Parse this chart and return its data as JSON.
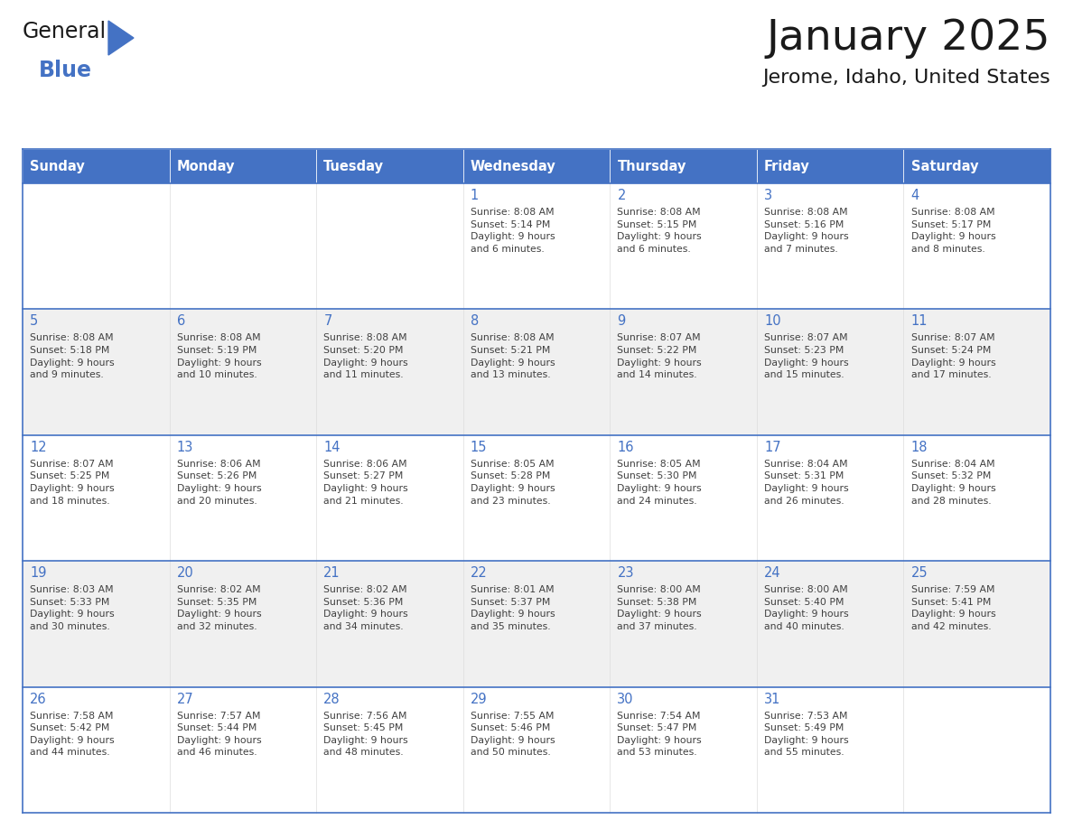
{
  "title": "January 2025",
  "subtitle": "Jerome, Idaho, United States",
  "header_bg_color": "#4472C4",
  "header_text_color": "#FFFFFF",
  "cell_bg_white": "#FFFFFF",
  "cell_bg_gray": "#F0F0F0",
  "border_color": "#4472C4",
  "row_separator_color": "#4472C4",
  "day_number_color": "#4472C4",
  "cell_text_color": "#404040",
  "title_color": "#1a1a1a",
  "subtitle_color": "#1a1a1a",
  "days_of_week": [
    "Sunday",
    "Monday",
    "Tuesday",
    "Wednesday",
    "Thursday",
    "Friday",
    "Saturday"
  ],
  "weeks": [
    [
      {
        "day": "",
        "info": ""
      },
      {
        "day": "",
        "info": ""
      },
      {
        "day": "",
        "info": ""
      },
      {
        "day": "1",
        "info": "Sunrise: 8:08 AM\nSunset: 5:14 PM\nDaylight: 9 hours\nand 6 minutes."
      },
      {
        "day": "2",
        "info": "Sunrise: 8:08 AM\nSunset: 5:15 PM\nDaylight: 9 hours\nand 6 minutes."
      },
      {
        "day": "3",
        "info": "Sunrise: 8:08 AM\nSunset: 5:16 PM\nDaylight: 9 hours\nand 7 minutes."
      },
      {
        "day": "4",
        "info": "Sunrise: 8:08 AM\nSunset: 5:17 PM\nDaylight: 9 hours\nand 8 minutes."
      }
    ],
    [
      {
        "day": "5",
        "info": "Sunrise: 8:08 AM\nSunset: 5:18 PM\nDaylight: 9 hours\nand 9 minutes."
      },
      {
        "day": "6",
        "info": "Sunrise: 8:08 AM\nSunset: 5:19 PM\nDaylight: 9 hours\nand 10 minutes."
      },
      {
        "day": "7",
        "info": "Sunrise: 8:08 AM\nSunset: 5:20 PM\nDaylight: 9 hours\nand 11 minutes."
      },
      {
        "day": "8",
        "info": "Sunrise: 8:08 AM\nSunset: 5:21 PM\nDaylight: 9 hours\nand 13 minutes."
      },
      {
        "day": "9",
        "info": "Sunrise: 8:07 AM\nSunset: 5:22 PM\nDaylight: 9 hours\nand 14 minutes."
      },
      {
        "day": "10",
        "info": "Sunrise: 8:07 AM\nSunset: 5:23 PM\nDaylight: 9 hours\nand 15 minutes."
      },
      {
        "day": "11",
        "info": "Sunrise: 8:07 AM\nSunset: 5:24 PM\nDaylight: 9 hours\nand 17 minutes."
      }
    ],
    [
      {
        "day": "12",
        "info": "Sunrise: 8:07 AM\nSunset: 5:25 PM\nDaylight: 9 hours\nand 18 minutes."
      },
      {
        "day": "13",
        "info": "Sunrise: 8:06 AM\nSunset: 5:26 PM\nDaylight: 9 hours\nand 20 minutes."
      },
      {
        "day": "14",
        "info": "Sunrise: 8:06 AM\nSunset: 5:27 PM\nDaylight: 9 hours\nand 21 minutes."
      },
      {
        "day": "15",
        "info": "Sunrise: 8:05 AM\nSunset: 5:28 PM\nDaylight: 9 hours\nand 23 minutes."
      },
      {
        "day": "16",
        "info": "Sunrise: 8:05 AM\nSunset: 5:30 PM\nDaylight: 9 hours\nand 24 minutes."
      },
      {
        "day": "17",
        "info": "Sunrise: 8:04 AM\nSunset: 5:31 PM\nDaylight: 9 hours\nand 26 minutes."
      },
      {
        "day": "18",
        "info": "Sunrise: 8:04 AM\nSunset: 5:32 PM\nDaylight: 9 hours\nand 28 minutes."
      }
    ],
    [
      {
        "day": "19",
        "info": "Sunrise: 8:03 AM\nSunset: 5:33 PM\nDaylight: 9 hours\nand 30 minutes."
      },
      {
        "day": "20",
        "info": "Sunrise: 8:02 AM\nSunset: 5:35 PM\nDaylight: 9 hours\nand 32 minutes."
      },
      {
        "day": "21",
        "info": "Sunrise: 8:02 AM\nSunset: 5:36 PM\nDaylight: 9 hours\nand 34 minutes."
      },
      {
        "day": "22",
        "info": "Sunrise: 8:01 AM\nSunset: 5:37 PM\nDaylight: 9 hours\nand 35 minutes."
      },
      {
        "day": "23",
        "info": "Sunrise: 8:00 AM\nSunset: 5:38 PM\nDaylight: 9 hours\nand 37 minutes."
      },
      {
        "day": "24",
        "info": "Sunrise: 8:00 AM\nSunset: 5:40 PM\nDaylight: 9 hours\nand 40 minutes."
      },
      {
        "day": "25",
        "info": "Sunrise: 7:59 AM\nSunset: 5:41 PM\nDaylight: 9 hours\nand 42 minutes."
      }
    ],
    [
      {
        "day": "26",
        "info": "Sunrise: 7:58 AM\nSunset: 5:42 PM\nDaylight: 9 hours\nand 44 minutes."
      },
      {
        "day": "27",
        "info": "Sunrise: 7:57 AM\nSunset: 5:44 PM\nDaylight: 9 hours\nand 46 minutes."
      },
      {
        "day": "28",
        "info": "Sunrise: 7:56 AM\nSunset: 5:45 PM\nDaylight: 9 hours\nand 48 minutes."
      },
      {
        "day": "29",
        "info": "Sunrise: 7:55 AM\nSunset: 5:46 PM\nDaylight: 9 hours\nand 50 minutes."
      },
      {
        "day": "30",
        "info": "Sunrise: 7:54 AM\nSunset: 5:47 PM\nDaylight: 9 hours\nand 53 minutes."
      },
      {
        "day": "31",
        "info": "Sunrise: 7:53 AM\nSunset: 5:49 PM\nDaylight: 9 hours\nand 55 minutes."
      },
      {
        "day": "",
        "info": ""
      }
    ]
  ],
  "logo_text1": "General",
  "logo_text2": "Blue",
  "logo_triangle_color": "#4472C4",
  "logo_text1_color": "#1a1a1a",
  "logo_text2_color": "#4472C4",
  "fig_width": 11.88,
  "fig_height": 9.18,
  "dpi": 100
}
